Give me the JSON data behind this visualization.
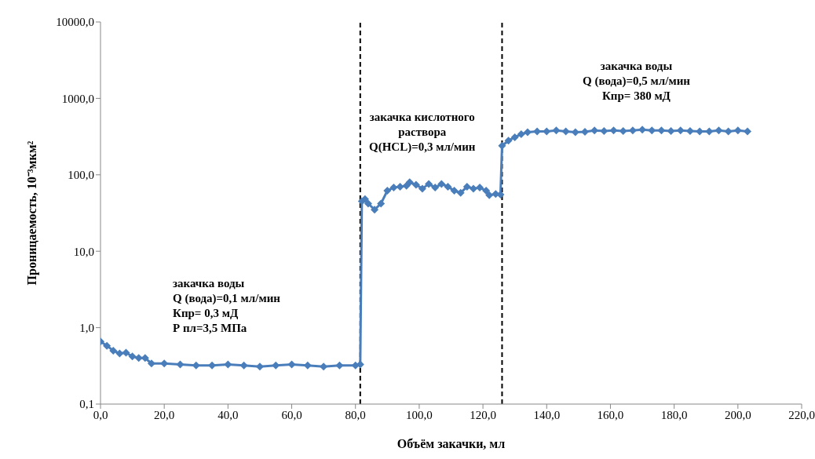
{
  "chart_data": {
    "type": "line",
    "xlabel": "Объём закачки, мл",
    "ylabel": "Проницаемость, 10⁻³мкм²",
    "x": [
      0,
      2,
      4,
      6,
      8,
      10,
      12,
      14,
      16,
      20,
      25,
      30,
      35,
      40,
      45,
      50,
      55,
      60,
      65,
      70,
      75,
      80,
      81.5,
      82,
      83,
      84,
      86,
      88,
      90,
      92,
      94,
      96,
      97,
      99,
      101,
      103,
      105,
      107,
      109,
      111,
      113,
      115,
      117,
      119,
      121,
      122,
      124,
      125.5,
      126,
      128,
      130,
      132,
      134,
      137,
      140,
      143,
      146,
      149,
      152,
      155,
      158,
      161,
      164,
      167,
      170,
      173,
      176,
      179,
      182,
      185,
      188,
      191,
      194,
      197,
      200,
      203
    ],
    "series": [
      {
        "color": "#4a7ebb",
        "values": [
          0.66,
          0.58,
          0.5,
          0.46,
          0.47,
          0.42,
          0.4,
          0.4,
          0.34,
          0.34,
          0.33,
          0.32,
          0.32,
          0.33,
          0.32,
          0.31,
          0.32,
          0.33,
          0.32,
          0.31,
          0.32,
          0.32,
          0.33,
          45,
          48,
          42,
          35,
          42,
          62,
          68,
          70,
          72,
          80,
          74,
          66,
          76,
          68,
          76,
          70,
          62,
          58,
          70,
          66,
          68,
          62,
          54,
          56,
          55,
          240,
          280,
          310,
          340,
          360,
          370,
          370,
          380,
          370,
          360,
          365,
          380,
          375,
          380,
          375,
          380,
          390,
          380,
          380,
          375,
          380,
          375,
          370,
          370,
          380,
          370,
          380,
          370
        ]
      }
    ],
    "log": "y",
    "marker": "diamond",
    "line_style": "solid",
    "xlim": [
      0,
      220
    ],
    "xticks": [
      {
        "value": 0,
        "label": "0,0"
      },
      {
        "value": 20,
        "label": "20,0"
      },
      {
        "value": 40,
        "label": "40,0"
      },
      {
        "value": 60,
        "label": "60,0"
      },
      {
        "value": 80,
        "label": "80,0"
      },
      {
        "value": 100,
        "label": "100,0"
      },
      {
        "value": 120,
        "label": "120,0"
      },
      {
        "value": 140,
        "label": "140,0"
      },
      {
        "value": 160,
        "label": "160,0"
      },
      {
        "value": 180,
        "label": "180,0"
      },
      {
        "value": 200,
        "label": "200,0"
      },
      {
        "value": 220,
        "label": "220,0"
      }
    ],
    "ylim": [
      0.1,
      10000
    ],
    "yticks": [
      {
        "value": 0.1,
        "label": "0,1"
      },
      {
        "value": 1,
        "label": "1,0"
      },
      {
        "value": 10,
        "label": "10,0"
      },
      {
        "value": 100,
        "label": "100,0"
      },
      {
        "value": 1000,
        "label": "1000,0"
      },
      {
        "value": 10000,
        "label": "10000,0"
      }
    ],
    "ref_lines": [
      {
        "axis": "x",
        "value": 81.5,
        "color": "#000000",
        "line_style": "dashed"
      },
      {
        "axis": "x",
        "value": 126,
        "color": "#000000",
        "line_style": "dashed"
      }
    ],
    "annotations": [
      "закачка воды\nQ (вода)=0,1 мл/мин\nКпр= 0,3 мД\nР пл=3,5 МПа",
      "закачка кислотного\nраствора\nQ(HCL)=0,3 мл/мин",
      "закачка воды\nQ (вода)=0,5 мл/мин\nКпр= 380 мД"
    ]
  }
}
